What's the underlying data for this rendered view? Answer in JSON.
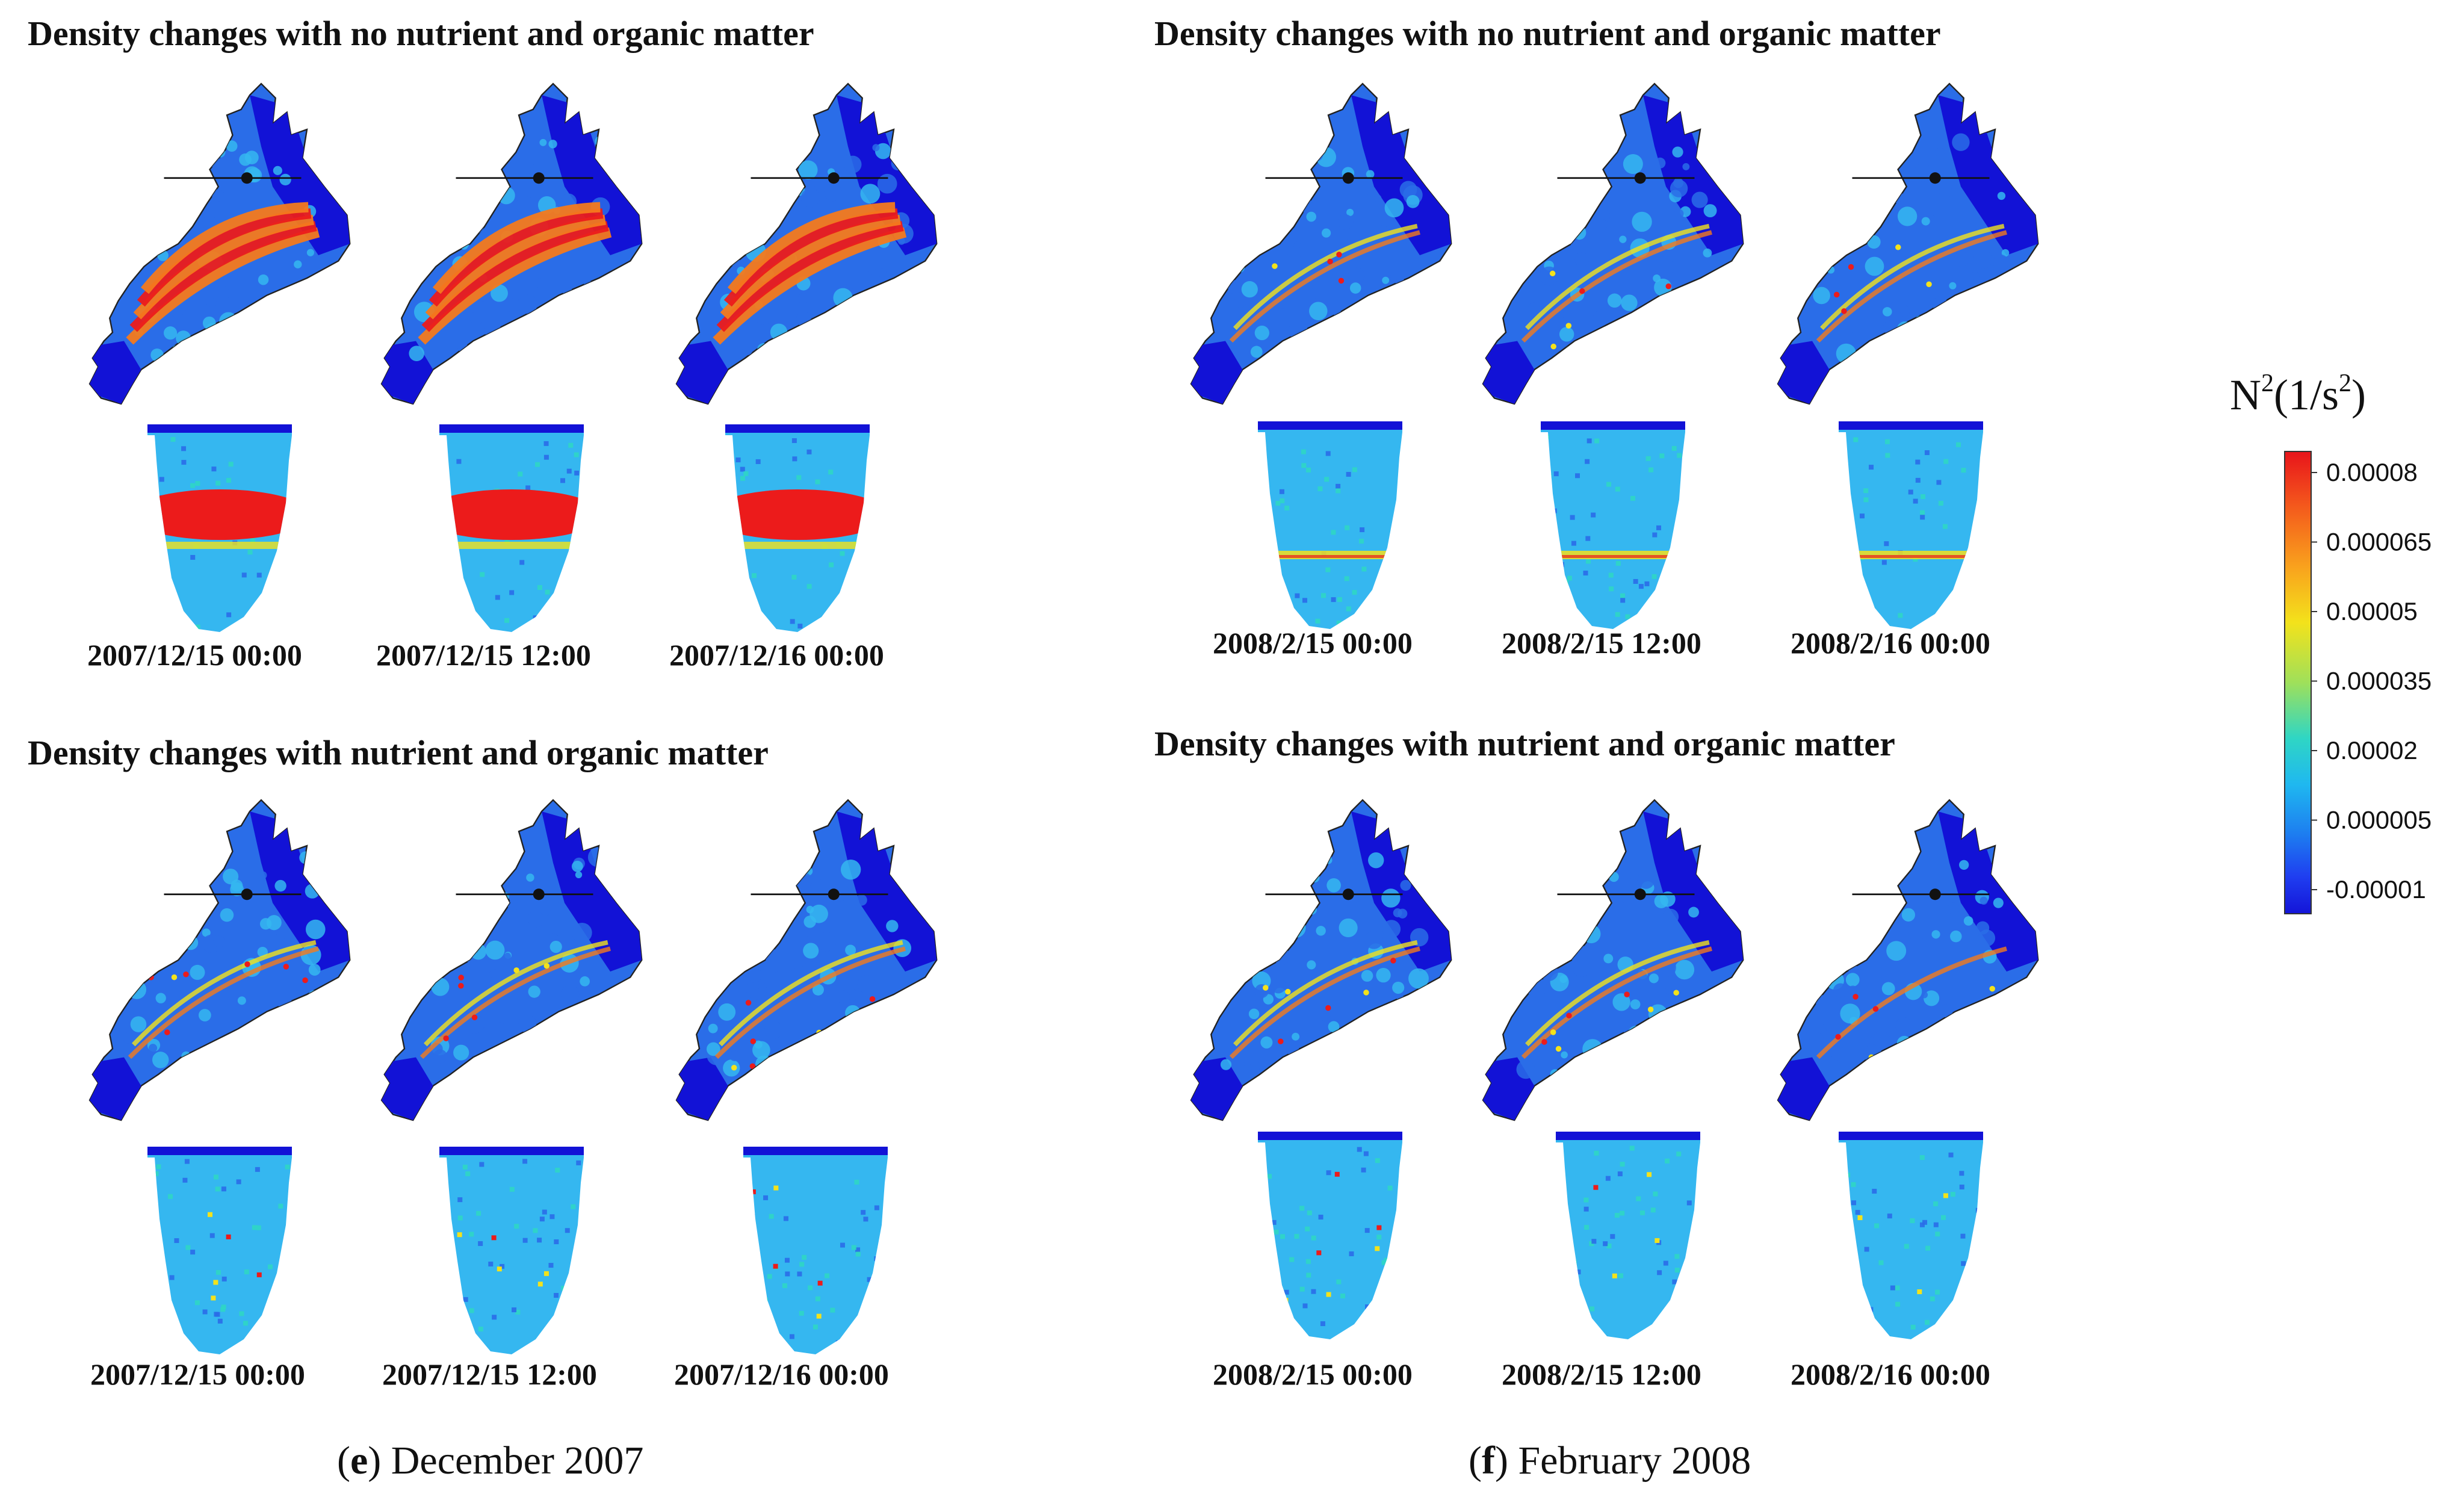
{
  "panels": [
    {
      "id": "e",
      "caption_letter": "e",
      "caption_text": "December 2007",
      "groups": [
        {
          "title": "Density changes with no nutrient and organic matter",
          "timestamps": [
            "2007/12/15 00:00",
            "2007/12/15 12:00",
            "2007/12/16 00:00"
          ],
          "intensity": [
            0.95,
            1.0,
            0.9
          ]
        },
        {
          "title": "Density changes with nutrient and organic matter",
          "timestamps": [
            "2007/12/15 00:00",
            "2007/12/15 12:00",
            "2007/12/16 00:00"
          ],
          "intensity": [
            0.35,
            0.4,
            0.38
          ]
        }
      ]
    },
    {
      "id": "f",
      "caption_letter": "f",
      "caption_text": "February 2008",
      "groups": [
        {
          "title": "Density changes with no nutrient and organic matter",
          "timestamps": [
            "2008/2/15 00:00",
            "2008/2/15 12:00",
            "2008/2/16 00:00"
          ],
          "intensity": [
            0.45,
            0.45,
            0.42
          ]
        },
        {
          "title": "Density changes with nutrient and organic matter",
          "timestamps": [
            "2008/2/15 00:00",
            "2008/2/15 12:00",
            "2008/2/16 00:00"
          ],
          "intensity": [
            0.3,
            0.32,
            0.28
          ]
        }
      ]
    }
  ],
  "colorbar": {
    "label_base": "N",
    "label_sup": "2",
    "label_rest": "(1/s",
    "label_sup2": "2",
    "label_end": ")",
    "ticks": [
      "0.00008",
      "0.000065",
      "0.00005",
      "0.000035",
      "0.00002",
      "0.000005",
      "-0.00001"
    ],
    "colors": [
      "#e8141b",
      "#f45a1c",
      "#f9a21d",
      "#f3e21b",
      "#a8e04a",
      "#2fd6c4",
      "#1fb8f0",
      "#1d7cf0",
      "#1f3ef0",
      "#1414d8"
    ]
  },
  "colors": {
    "deep_blue": "#1212d6",
    "mid_blue": "#2a6de8",
    "light_blue": "#35b7f0",
    "cyan": "#2fd6c4",
    "yellow": "#f3e21b",
    "orange": "#f47a1c",
    "red": "#ec1b1b"
  }
}
